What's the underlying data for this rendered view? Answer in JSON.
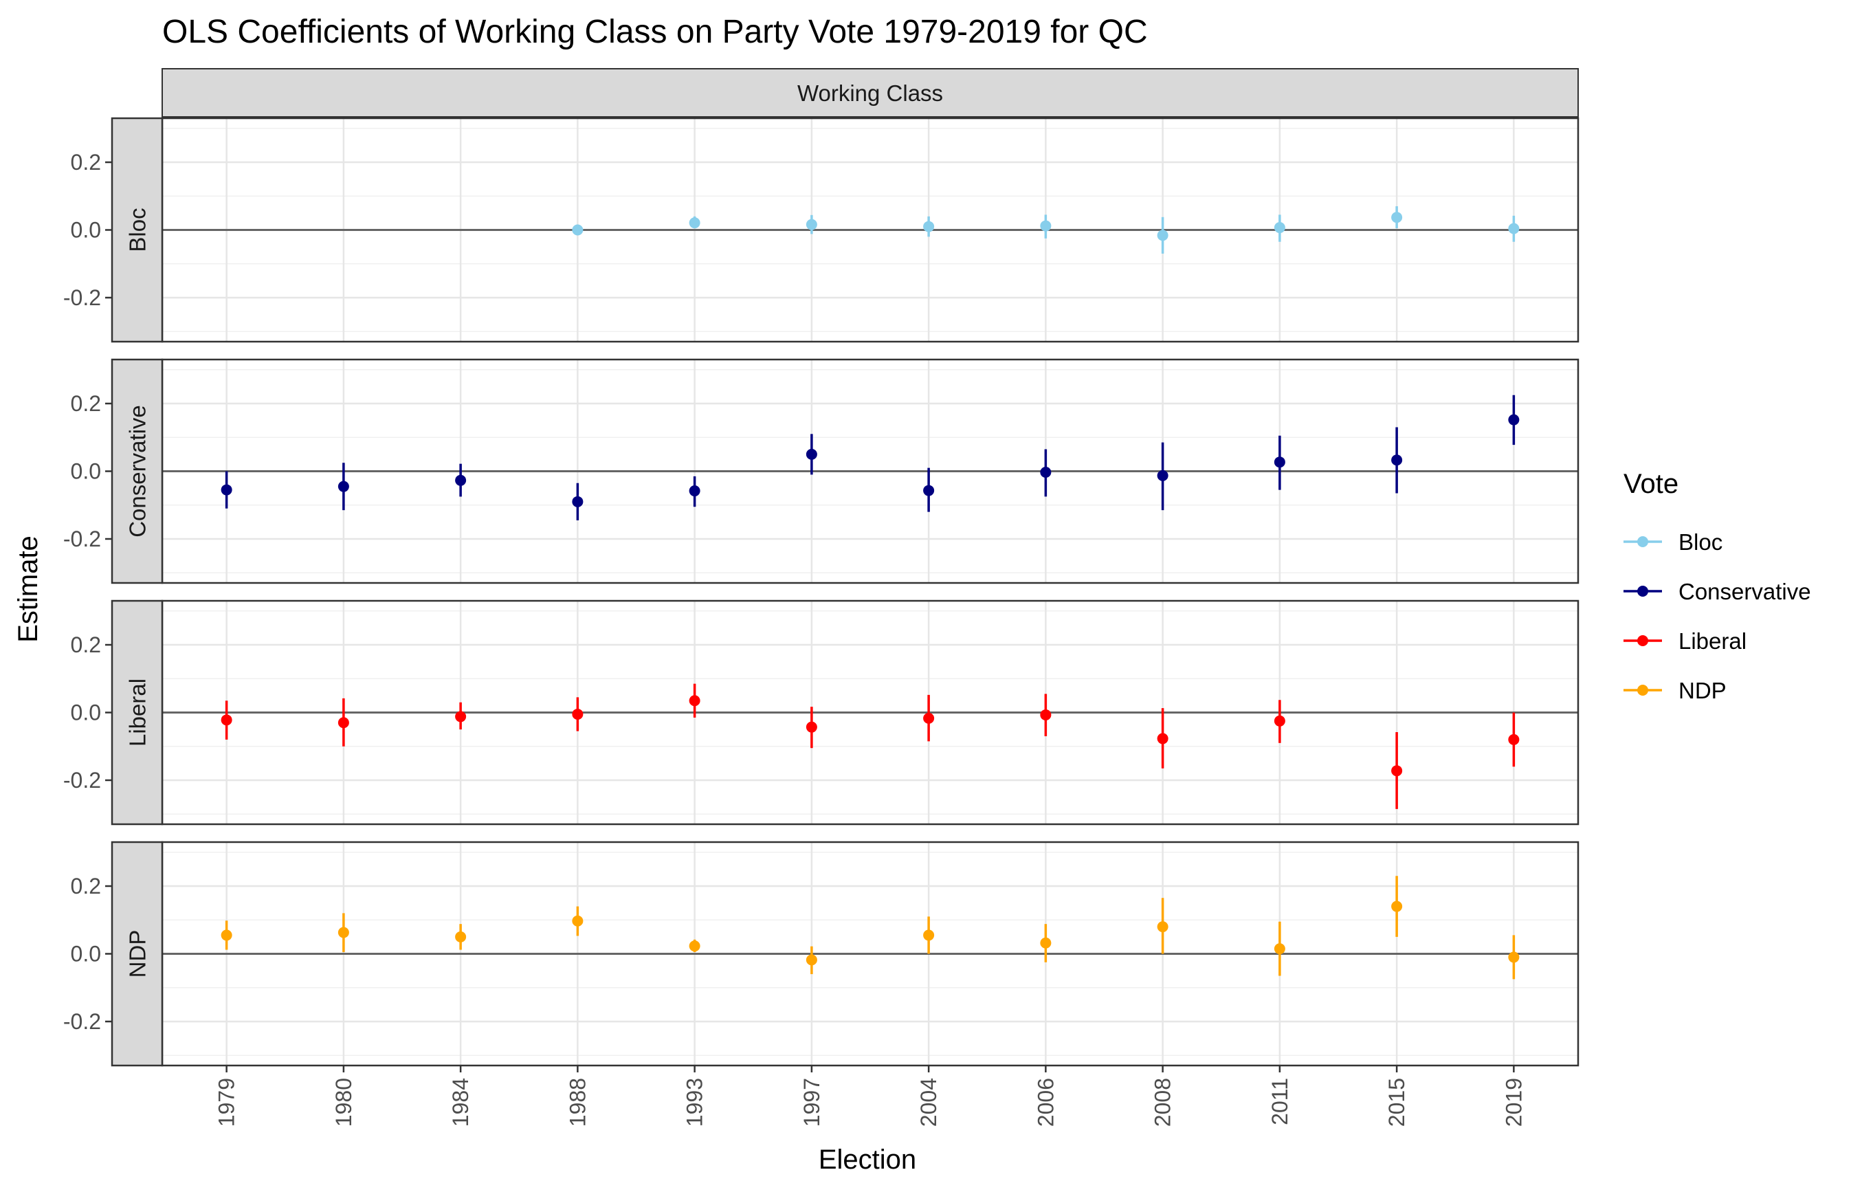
{
  "chart_data": {
    "type": "scatter",
    "title": "OLS Coefficients of Working Class on Party Vote 1979-2019 for QC",
    "xlabel": "Election",
    "ylabel": "Estimate",
    "column_strip": "Working Class",
    "legend": {
      "title": "Vote",
      "position": "right",
      "items": [
        {
          "name": "Bloc",
          "color": "#87CEEB"
        },
        {
          "name": "Conservative",
          "color": "#000080"
        },
        {
          "name": "Liberal",
          "color": "#FF0000"
        },
        {
          "name": "NDP",
          "color": "#FFA500"
        }
      ]
    },
    "ylim": [
      -0.33,
      0.33
    ],
    "yticks": [
      -0.2,
      0.0,
      0.2
    ],
    "ytick_labels": [
      "-0.2",
      "0.0",
      "0.2"
    ],
    "grid": true,
    "reference_line_y": 0,
    "categories": [
      "1979",
      "1980",
      "1984",
      "1988",
      "1993",
      "1997",
      "2004",
      "2006",
      "2008",
      "2011",
      "2015",
      "2019"
    ],
    "panels": [
      {
        "label": "Bloc",
        "color": "#87CEEB",
        "points": [
          {
            "x": "1988",
            "y": 0.0,
            "lo": -0.005,
            "hi": 0.005
          },
          {
            "x": "1993",
            "y": 0.021,
            "lo": 0.005,
            "hi": 0.04
          },
          {
            "x": "1997",
            "y": 0.016,
            "lo": -0.012,
            "hi": 0.044
          },
          {
            "x": "2004",
            "y": 0.01,
            "lo": -0.02,
            "hi": 0.04
          },
          {
            "x": "2006",
            "y": 0.012,
            "lo": -0.025,
            "hi": 0.045
          },
          {
            "x": "2008",
            "y": -0.016,
            "lo": -0.07,
            "hi": 0.038
          },
          {
            "x": "2011",
            "y": 0.007,
            "lo": -0.035,
            "hi": 0.045
          },
          {
            "x": "2015",
            "y": 0.037,
            "lo": 0.005,
            "hi": 0.07
          },
          {
            "x": "2019",
            "y": 0.004,
            "lo": -0.035,
            "hi": 0.042
          }
        ]
      },
      {
        "label": "Conservative",
        "color": "#000080",
        "points": [
          {
            "x": "1979",
            "y": -0.055,
            "lo": -0.11,
            "hi": 0.0
          },
          {
            "x": "1980",
            "y": -0.045,
            "lo": -0.115,
            "hi": 0.025
          },
          {
            "x": "1984",
            "y": -0.027,
            "lo": -0.075,
            "hi": 0.022
          },
          {
            "x": "1988",
            "y": -0.09,
            "lo": -0.145,
            "hi": -0.035
          },
          {
            "x": "1993",
            "y": -0.058,
            "lo": -0.105,
            "hi": -0.015
          },
          {
            "x": "1997",
            "y": 0.05,
            "lo": -0.01,
            "hi": 0.11
          },
          {
            "x": "2004",
            "y": -0.057,
            "lo": -0.12,
            "hi": 0.01
          },
          {
            "x": "2006",
            "y": -0.003,
            "lo": -0.075,
            "hi": 0.065
          },
          {
            "x": "2008",
            "y": -0.013,
            "lo": -0.115,
            "hi": 0.085
          },
          {
            "x": "2011",
            "y": 0.027,
            "lo": -0.055,
            "hi": 0.105
          },
          {
            "x": "2015",
            "y": 0.033,
            "lo": -0.065,
            "hi": 0.13
          },
          {
            "x": "2019",
            "y": 0.152,
            "lo": 0.078,
            "hi": 0.225
          }
        ]
      },
      {
        "label": "Liberal",
        "color": "#FF0000",
        "points": [
          {
            "x": "1979",
            "y": -0.022,
            "lo": -0.08,
            "hi": 0.035
          },
          {
            "x": "1980",
            "y": -0.03,
            "lo": -0.1,
            "hi": 0.042
          },
          {
            "x": "1984",
            "y": -0.012,
            "lo": -0.05,
            "hi": 0.03
          },
          {
            "x": "1988",
            "y": -0.005,
            "lo": -0.055,
            "hi": 0.045
          },
          {
            "x": "1993",
            "y": 0.035,
            "lo": -0.015,
            "hi": 0.085
          },
          {
            "x": "1997",
            "y": -0.043,
            "lo": -0.105,
            "hi": 0.017
          },
          {
            "x": "2004",
            "y": -0.017,
            "lo": -0.085,
            "hi": 0.052
          },
          {
            "x": "2006",
            "y": -0.007,
            "lo": -0.07,
            "hi": 0.055
          },
          {
            "x": "2008",
            "y": -0.077,
            "lo": -0.165,
            "hi": 0.013
          },
          {
            "x": "2011",
            "y": -0.025,
            "lo": -0.09,
            "hi": 0.037
          },
          {
            "x": "2015",
            "y": -0.172,
            "lo": -0.285,
            "hi": -0.058
          },
          {
            "x": "2019",
            "y": -0.08,
            "lo": -0.16,
            "hi": 0.0
          }
        ]
      },
      {
        "label": "NDP",
        "color": "#FFA500",
        "points": [
          {
            "x": "1979",
            "y": 0.055,
            "lo": 0.012,
            "hi": 0.098
          },
          {
            "x": "1980",
            "y": 0.063,
            "lo": 0.005,
            "hi": 0.12
          },
          {
            "x": "1984",
            "y": 0.05,
            "lo": 0.012,
            "hi": 0.088
          },
          {
            "x": "1988",
            "y": 0.097,
            "lo": 0.053,
            "hi": 0.14
          },
          {
            "x": "1993",
            "y": 0.023,
            "lo": 0.005,
            "hi": 0.042
          },
          {
            "x": "1997",
            "y": -0.018,
            "lo": -0.06,
            "hi": 0.022
          },
          {
            "x": "2004",
            "y": 0.055,
            "lo": 0.0,
            "hi": 0.11
          },
          {
            "x": "2006",
            "y": 0.032,
            "lo": -0.025,
            "hi": 0.088
          },
          {
            "x": "2008",
            "y": 0.08,
            "lo": 0.0,
            "hi": 0.165
          },
          {
            "x": "2011",
            "y": 0.015,
            "lo": -0.065,
            "hi": 0.095
          },
          {
            "x": "2015",
            "y": 0.14,
            "lo": 0.05,
            "hi": 0.23
          },
          {
            "x": "2019",
            "y": -0.01,
            "lo": -0.075,
            "hi": 0.055
          }
        ]
      }
    ]
  }
}
